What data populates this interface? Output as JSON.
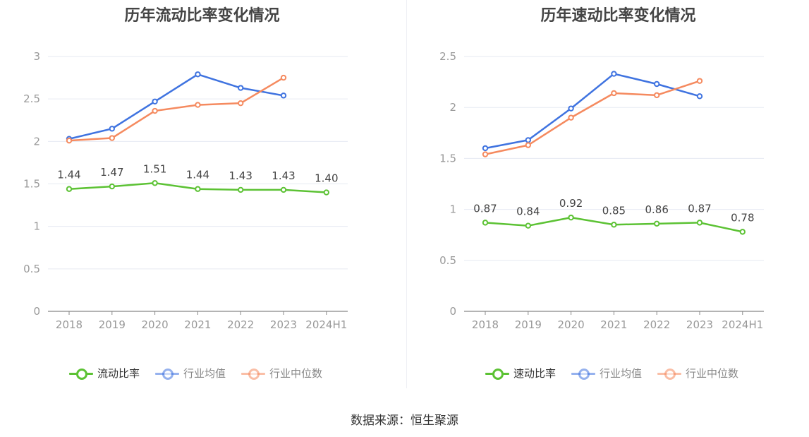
{
  "source_label": "数据来源：恒生聚源",
  "colors": {
    "company": "#5cc234",
    "industry_avg": "#3f73e0",
    "industry_median": "#f58a5f",
    "grid": "#e6eaf2",
    "axis": "#888888",
    "tick_text": "#999999",
    "label_text": "#444444"
  },
  "chart_data": [
    {
      "type": "line",
      "title": "历年流动比率变化情况",
      "categories": [
        "2018",
        "2019",
        "2020",
        "2021",
        "2022",
        "2023",
        "2024H1"
      ],
      "ylim": [
        0,
        3
      ],
      "yticks": [
        0,
        0.5,
        1,
        1.5,
        2,
        2.5,
        3
      ],
      "ytick_labels": [
        "0",
        "0.5",
        "1",
        "1.5",
        "2",
        "2.5",
        "3"
      ],
      "grid": true,
      "legend_position": "bottom",
      "series": [
        {
          "name": "流动比率",
          "key": "company",
          "values": [
            1.44,
            1.47,
            1.51,
            1.44,
            1.43,
            1.43,
            1.4
          ],
          "labels": [
            "1.44",
            "1.47",
            "1.51",
            "1.44",
            "1.43",
            "1.43",
            "1.40"
          ]
        },
        {
          "name": "行业均值",
          "key": "industry_avg",
          "values": [
            2.03,
            2.15,
            2.47,
            2.79,
            2.63,
            2.54,
            null
          ]
        },
        {
          "name": "行业中位数",
          "key": "industry_median",
          "values": [
            2.01,
            2.04,
            2.36,
            2.43,
            2.45,
            2.75,
            null
          ]
        }
      ]
    },
    {
      "type": "line",
      "title": "历年速动比率变化情况",
      "categories": [
        "2018",
        "2019",
        "2020",
        "2021",
        "2022",
        "2023",
        "2024H1"
      ],
      "ylim": [
        0,
        2.5
      ],
      "yticks": [
        0,
        0.5,
        1,
        1.5,
        2,
        2.5
      ],
      "ytick_labels": [
        "0",
        "0.5",
        "1",
        "1.5",
        "2",
        "2.5"
      ],
      "grid": true,
      "legend_position": "bottom",
      "series": [
        {
          "name": "速动比率",
          "key": "company",
          "values": [
            0.87,
            0.84,
            0.92,
            0.85,
            0.86,
            0.87,
            0.78
          ],
          "labels": [
            "0.87",
            "0.84",
            "0.92",
            "0.85",
            "0.86",
            "0.87",
            "0.78"
          ]
        },
        {
          "name": "行业均值",
          "key": "industry_avg",
          "values": [
            1.6,
            1.68,
            1.99,
            2.33,
            2.23,
            2.11,
            null
          ]
        },
        {
          "name": "行业中位数",
          "key": "industry_median",
          "values": [
            1.54,
            1.63,
            1.9,
            2.14,
            2.12,
            2.26,
            null
          ]
        }
      ]
    }
  ]
}
